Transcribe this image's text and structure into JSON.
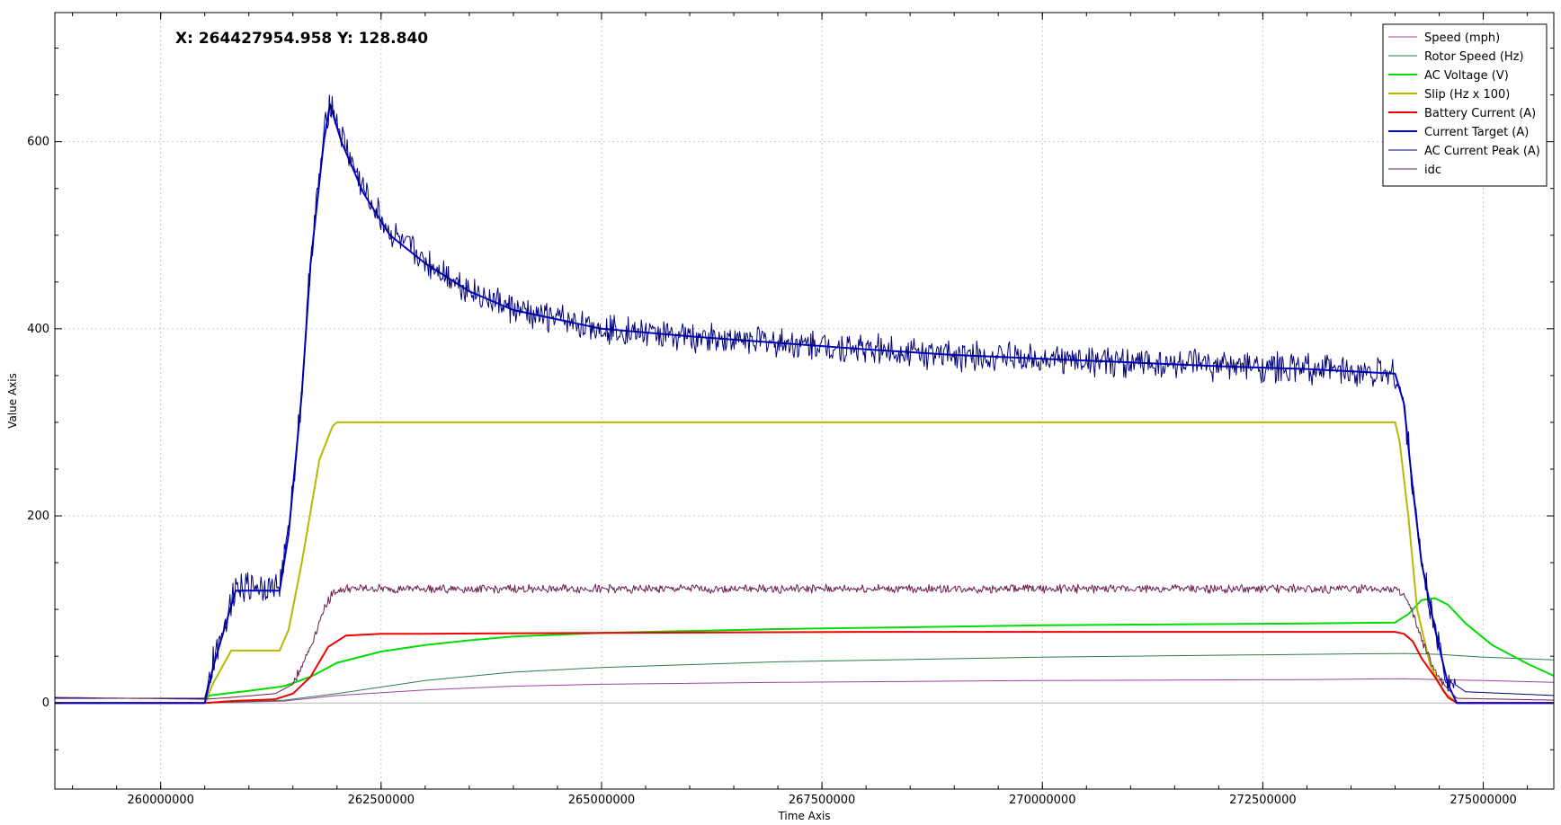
{
  "readout": "X: 264427954.958 Y: 128.840",
  "chart_data": {
    "type": "line",
    "xlabel": "Time Axis",
    "ylabel": "Value Axis",
    "xlim": [
      258800000,
      275800000
    ],
    "ylim": [
      -92,
      738
    ],
    "x_ticks": [
      260000000,
      262500000,
      265000000,
      267500000,
      270000000,
      272500000,
      275000000
    ],
    "x_tick_labels": [
      "260000000",
      "262500000",
      "265000000",
      "267500000",
      "270000000",
      "272500000",
      "275000000"
    ],
    "y_ticks": [
      0,
      200,
      400,
      600
    ],
    "y_tick_labels": [
      "0",
      "200",
      "400",
      "600"
    ],
    "grid": true,
    "legend_position": "top-right",
    "series": [
      {
        "name": "Speed (mph)",
        "color": "#a040a0",
        "width": 1,
        "x": [
          258800000,
          260500000,
          261400000,
          262000000,
          263000000,
          264000000,
          265000000,
          267000000,
          270000000,
          273000000,
          274100000,
          274500000,
          275000000,
          275800000
        ],
        "y": [
          0,
          0,
          2,
          8,
          14,
          18,
          20,
          22,
          24,
          25,
          26,
          25,
          24,
          22
        ]
      },
      {
        "name": "Rotor Speed (Hz)",
        "color": "#2e7d4f",
        "width": 1,
        "x": [
          258800000,
          260500000,
          261400000,
          262000000,
          263000000,
          264000000,
          265000000,
          267000000,
          270000000,
          273000000,
          274100000,
          274500000,
          275000000,
          275800000
        ],
        "y": [
          0,
          0,
          3,
          10,
          24,
          33,
          38,
          44,
          49,
          52,
          53,
          52,
          49,
          46
        ]
      },
      {
        "name": "AC Voltage (V)",
        "color": "#00dd00",
        "width": 2,
        "x": [
          258800000,
          260500000,
          260550000,
          261000000,
          261400000,
          261700000,
          262000000,
          262500000,
          263000000,
          263500000,
          264000000,
          265000000,
          267000000,
          270000000,
          273000000,
          274000000,
          274150000,
          274300000,
          274450000,
          274600000,
          274800000,
          275100000,
          275500000,
          275800000
        ],
        "y": [
          0,
          0,
          8,
          13,
          18,
          28,
          43,
          55,
          62,
          67,
          71,
          75,
          79,
          83,
          85,
          86,
          95,
          110,
          112,
          105,
          85,
          62,
          42,
          29
        ]
      },
      {
        "name": "Slip (Hz x 100)",
        "color": "#b8b800",
        "width": 2,
        "x": [
          258800000,
          260500000,
          260600000,
          260800000,
          261350000,
          261450000,
          261600000,
          261800000,
          261950000,
          262000000,
          264000000,
          267000000,
          270000000,
          273000000,
          274000000,
          274050000,
          274150000,
          274250000,
          274400000,
          274550000,
          274700000,
          275800000
        ],
        "y": [
          0,
          0,
          22,
          56,
          56,
          78,
          150,
          260,
          296,
          300,
          300,
          300,
          300,
          300,
          300,
          280,
          200,
          100,
          40,
          12,
          0,
          0
        ]
      },
      {
        "name": "Battery Current (A)",
        "color": "#ee0000",
        "width": 2,
        "x": [
          258800000,
          260500000,
          260800000,
          261300000,
          261500000,
          261700000,
          261900000,
          262100000,
          262500000,
          263000000,
          265000000,
          268000000,
          271000000,
          274000000,
          274100000,
          274200000,
          274300000,
          274450000,
          274600000,
          274700000,
          275800000
        ],
        "y": [
          0,
          0,
          2,
          4,
          10,
          28,
          60,
          72,
          74,
          74,
          75,
          76,
          76,
          76,
          74,
          66,
          48,
          28,
          6,
          0,
          0
        ]
      },
      {
        "name": "Current Target (A)",
        "color": "#0000dd",
        "width": 2,
        "x": [
          258800000,
          260500000,
          260600000,
          260850000,
          261350000,
          261450000,
          261600000,
          261700000,
          261850000,
          261920000,
          262050000,
          262300000,
          262600000,
          263000000,
          263500000,
          264000000,
          264500000,
          265000000,
          266000000,
          267000000,
          268000000,
          269000000,
          270000000,
          271000000,
          272000000,
          273000000,
          274000000,
          274100000,
          274200000,
          274300000,
          274450000,
          274600000,
          274700000,
          275800000
        ],
        "y": [
          0,
          0,
          40,
          120,
          120,
          180,
          330,
          470,
          600,
          640,
          600,
          545,
          500,
          470,
          440,
          420,
          410,
          400,
          392,
          385,
          378,
          372,
          368,
          364,
          360,
          357,
          352,
          320,
          230,
          150,
          80,
          20,
          0,
          0
        ]
      },
      {
        "name": "AC Current Peak (A)",
        "color": "#00007a",
        "width": 1,
        "noise": 18,
        "x": [
          258800000,
          260500000,
          260600000,
          260850000,
          261350000,
          261450000,
          261600000,
          261700000,
          261850000,
          261920000,
          262050000,
          262300000,
          262600000,
          263000000,
          263500000,
          264000000,
          264500000,
          265000000,
          266000000,
          267000000,
          268000000,
          269000000,
          270000000,
          271000000,
          272000000,
          273000000,
          274000000,
          274100000,
          274200000,
          274300000,
          274450000,
          274600000,
          274800000,
          275800000
        ],
        "y": [
          5,
          5,
          45,
          125,
          125,
          185,
          330,
          475,
          605,
          645,
          605,
          548,
          502,
          472,
          442,
          420,
          410,
          400,
          392,
          385,
          378,
          372,
          368,
          364,
          360,
          357,
          352,
          320,
          230,
          150,
          80,
          25,
          12,
          8
        ]
      },
      {
        "name": "idc",
        "color": "#6b1f4d",
        "width": 1,
        "noise": 5,
        "x": [
          258800000,
          260500000,
          260800000,
          261300000,
          261500000,
          261700000,
          261850000,
          261950000,
          262100000,
          265000000,
          268000000,
          271000000,
          274000000,
          274100000,
          274200000,
          274350000,
          274500000,
          274700000,
          275800000
        ],
        "y": [
          6,
          4,
          6,
          10,
          20,
          60,
          100,
          118,
          122,
          122,
          122,
          122,
          122,
          115,
          95,
          55,
          25,
          5,
          3
        ]
      }
    ]
  }
}
